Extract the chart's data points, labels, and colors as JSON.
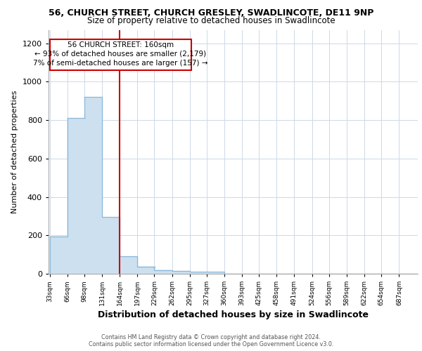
{
  "title1": "56, CHURCH STREET, CHURCH GRESLEY, SWADLINCOTE, DE11 9NP",
  "title2": "Size of property relative to detached houses in Swadlincote",
  "xlabel": "Distribution of detached houses by size in Swadlincote",
  "ylabel": "Number of detached properties",
  "annotation_line1": "56 CHURCH STREET: 160sqm",
  "annotation_line2": "← 93% of detached houses are smaller (2,179)",
  "annotation_line3": "7% of semi-detached houses are larger (157) →",
  "footer1": "Contains HM Land Registry data © Crown copyright and database right 2024.",
  "footer2": "Contains public sector information licensed under the Open Government Licence v3.0.",
  "bar_color": "#cce0f0",
  "bar_edge_color": "#8ab8d8",
  "vline_color": "#cc0000",
  "vline_x": 164,
  "categories": [
    33,
    66,
    98,
    131,
    164,
    197,
    229,
    262,
    295,
    327,
    360,
    393,
    425,
    458,
    491,
    524,
    556,
    589,
    622,
    654,
    687
  ],
  "values": [
    195,
    810,
    920,
    295,
    90,
    38,
    20,
    15,
    10,
    10,
    0,
    0,
    0,
    0,
    0,
    0,
    0,
    0,
    0,
    0,
    0
  ],
  "ylim": [
    0,
    1270
  ],
  "yticks": [
    0,
    200,
    400,
    600,
    800,
    1000,
    1200
  ],
  "bin_width": 33,
  "background_color": "#ffffff",
  "grid_color": "#ccd9e8",
  "title_fontsize": 9,
  "subtitle_fontsize": 8.5,
  "xlabel_fontsize": 9,
  "ylabel_fontsize": 8
}
